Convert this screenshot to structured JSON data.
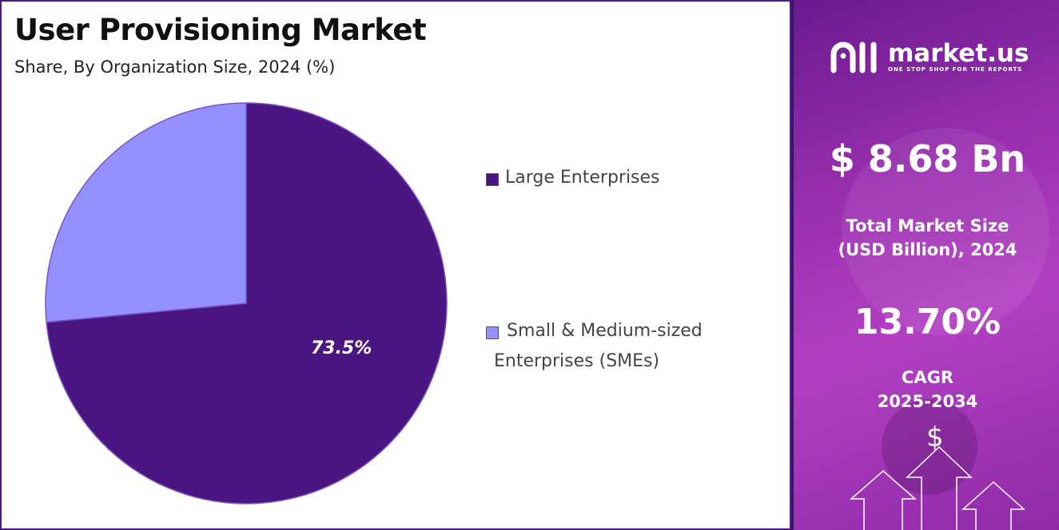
{
  "chart": {
    "title": "User Provisioning Market",
    "subtitle": "Share, By Organization Size, 2024 (%)"
  },
  "chart_data": {
    "type": "pie",
    "categories": [
      "Large Enterprises",
      "Small & Medium-sized Enterprises (SMEs)"
    ],
    "values": [
      73.5,
      26.5
    ],
    "data_labels": [
      "73.5%",
      ""
    ],
    "colors": [
      "#4a1580",
      "#9590ff"
    ],
    "legend_position": "right",
    "legend_lines": [
      [
        "Large Enterprises"
      ],
      [
        "Small & Medium-sized",
        "Enterprises (SMEs)"
      ]
    ]
  },
  "brand": {
    "name": "market.us",
    "tagline": "ONE STOP SHOP FOR THE REPORTS",
    "logo_icon": "market-us-logo-icon"
  },
  "stats": {
    "market_size_value": "$ 8.68 Bn",
    "market_size_caption_line1": "Total Market Size",
    "market_size_caption_line2": "(USD Billion), 2024",
    "cagr_value": "13.70%",
    "cagr_caption_line1": "CAGR",
    "cagr_caption_line2": "2025-2034",
    "currency_symbol": "$"
  },
  "colors": {
    "panel_gradient_start": "#6a1a8e",
    "panel_gradient_end": "#b23fc2",
    "border": "#4b1a8c"
  }
}
